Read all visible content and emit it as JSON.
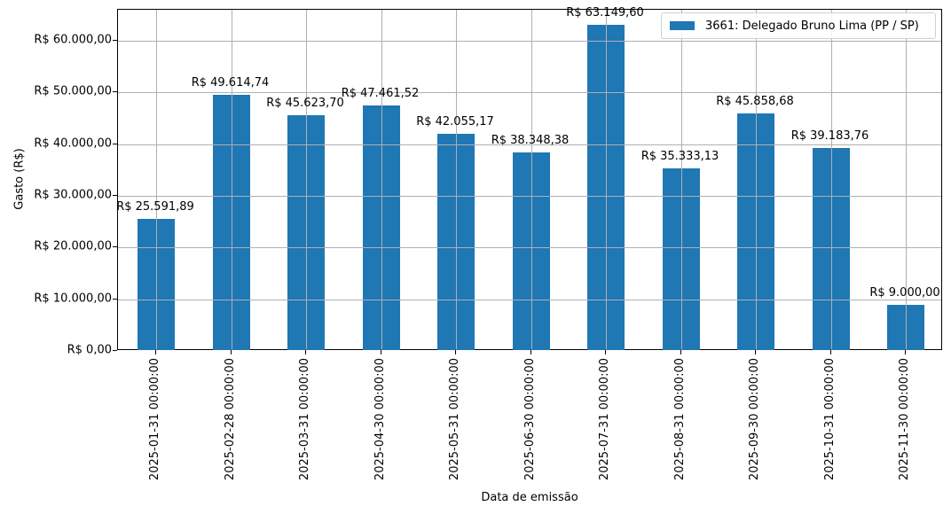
{
  "chart_data": {
    "type": "bar",
    "title": "",
    "xlabel": "Data de emissão",
    "ylabel": "Gasto (R$)",
    "ylim": [
      0,
      66000
    ],
    "grid": true,
    "legend_position": "upper right",
    "categories": [
      "2025-01-31 00:00:00",
      "2025-02-28 00:00:00",
      "2025-03-31 00:00:00",
      "2025-04-30 00:00:00",
      "2025-05-31 00:00:00",
      "2025-06-30 00:00:00",
      "2025-07-31 00:00:00",
      "2025-08-31 00:00:00",
      "2025-09-30 00:00:00",
      "2025-10-31 00:00:00",
      "2025-11-30 00:00:00"
    ],
    "series": [
      {
        "name": "3661: Delegado Bruno Lima (PP / SP)",
        "color": "#1f77b4",
        "values": [
          25591.89,
          49614.74,
          45623.7,
          47461.52,
          42055.17,
          38348.38,
          63149.6,
          35333.13,
          45858.68,
          39183.76,
          9000.0
        ],
        "labels": [
          "R$ 25.591,89",
          "R$ 49.614,74",
          "R$ 45.623,70",
          "R$ 47.461,52",
          "R$ 42.055,17",
          "R$ 38.348,38",
          "R$ 63.149,60",
          "R$ 35.333,13",
          "R$ 45.858,68",
          "R$ 39.183,76",
          "R$ 9.000,00"
        ]
      }
    ],
    "y_ticks": [
      {
        "value": 0,
        "label": "R$ 0,00"
      },
      {
        "value": 10000,
        "label": "R$ 10.000,00"
      },
      {
        "value": 20000,
        "label": "R$ 20.000,00"
      },
      {
        "value": 30000,
        "label": "R$ 30.000,00"
      },
      {
        "value": 40000,
        "label": "R$ 40.000,00"
      },
      {
        "value": 50000,
        "label": "R$ 50.000,00"
      },
      {
        "value": 60000,
        "label": "R$ 60.000,00"
      }
    ]
  },
  "colors": {
    "bar": "#1f77b4",
    "grid": "#b0b0b0",
    "axis": "#000000"
  }
}
